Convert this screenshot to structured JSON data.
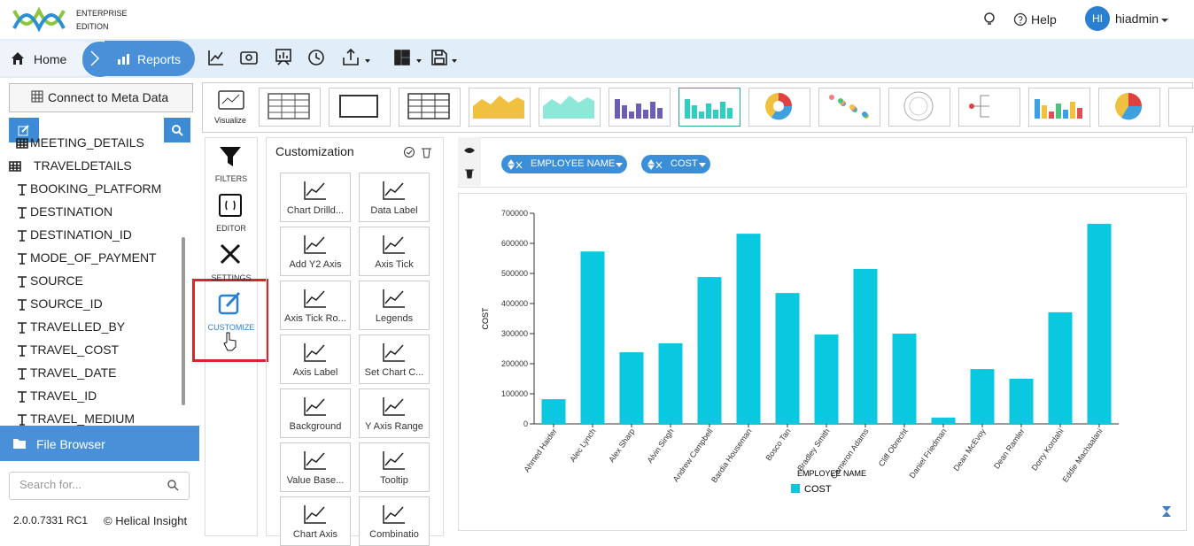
{
  "header": {
    "edition_line1": "ENTERPRISE",
    "edition_line2": "EDITION",
    "help": "Help",
    "avatar": "HI",
    "user": "hiadmin"
  },
  "nav": {
    "home": "Home",
    "reports": "Reports"
  },
  "sidebar": {
    "connect": "Connect to Meta Data",
    "tree": [
      "MEETING_DETAILS",
      "TRAVELDETAILS",
      "BOOKING_PLATFORM",
      "DESTINATION",
      "DESTINATION_ID",
      "MODE_OF_PAYMENT",
      "SOURCE",
      "SOURCE_ID",
      "TRAVELLED_BY",
      "TRAVEL_COST",
      "TRAVEL_DATE",
      "TRAVEL_ID",
      "TRAVEL_MEDIUM"
    ],
    "file_browser": "File Browser",
    "search_placeholder": "Search for...",
    "version": "2.0.0.7331 RC1",
    "copyright": "© Helical Insight"
  },
  "visualize_label": "Visualize",
  "tools": [
    "FILTERS",
    "EDITOR",
    "SETTINGS",
    "CUSTOMIZE"
  ],
  "customization": {
    "title": "Customization",
    "items": [
      "Chart Drilld...",
      "Data Label",
      "Add Y2 Axis",
      "Axis Tick",
      "Axis Tick Ro...",
      "Legends",
      "Axis Label",
      "Set Chart C...",
      "Background",
      "Y Axis Range",
      "Value Base...",
      "Tooltip",
      "Chart Axis",
      "Combinatio"
    ]
  },
  "fields": [
    "EMPLOYEE NAME",
    "COST"
  ],
  "chart_data": {
    "type": "bar",
    "x_label": "EMPLOYEE NAME",
    "y_label": "COST",
    "categories": [
      "Ahmed Haider",
      "Alec Lynch",
      "Alex Sharp",
      "Alvin Singh",
      "Andrew Campbell",
      "Bardia Houseman",
      "Bosco Tan",
      "Bradley Smith",
      "Cameron Adams",
      "Cliff Obrecht",
      "Daniel Friedman",
      "Dean McEvoy",
      "Dean Ramler",
      "Dorry Kordahi",
      "Eddie Machaalani"
    ],
    "series": [
      {
        "name": "COST",
        "color": "#0ac8e0",
        "values": [
          82000,
          573000,
          238000,
          268000,
          488000,
          632000,
          435000,
          297000,
          515000,
          300000,
          21000,
          182000,
          150000,
          371000,
          665000
        ]
      }
    ],
    "ylim": [
      0,
      700000
    ],
    "yticks": [
      0,
      100000,
      200000,
      300000,
      400000,
      500000,
      600000,
      700000
    ],
    "legend": "bottom"
  }
}
